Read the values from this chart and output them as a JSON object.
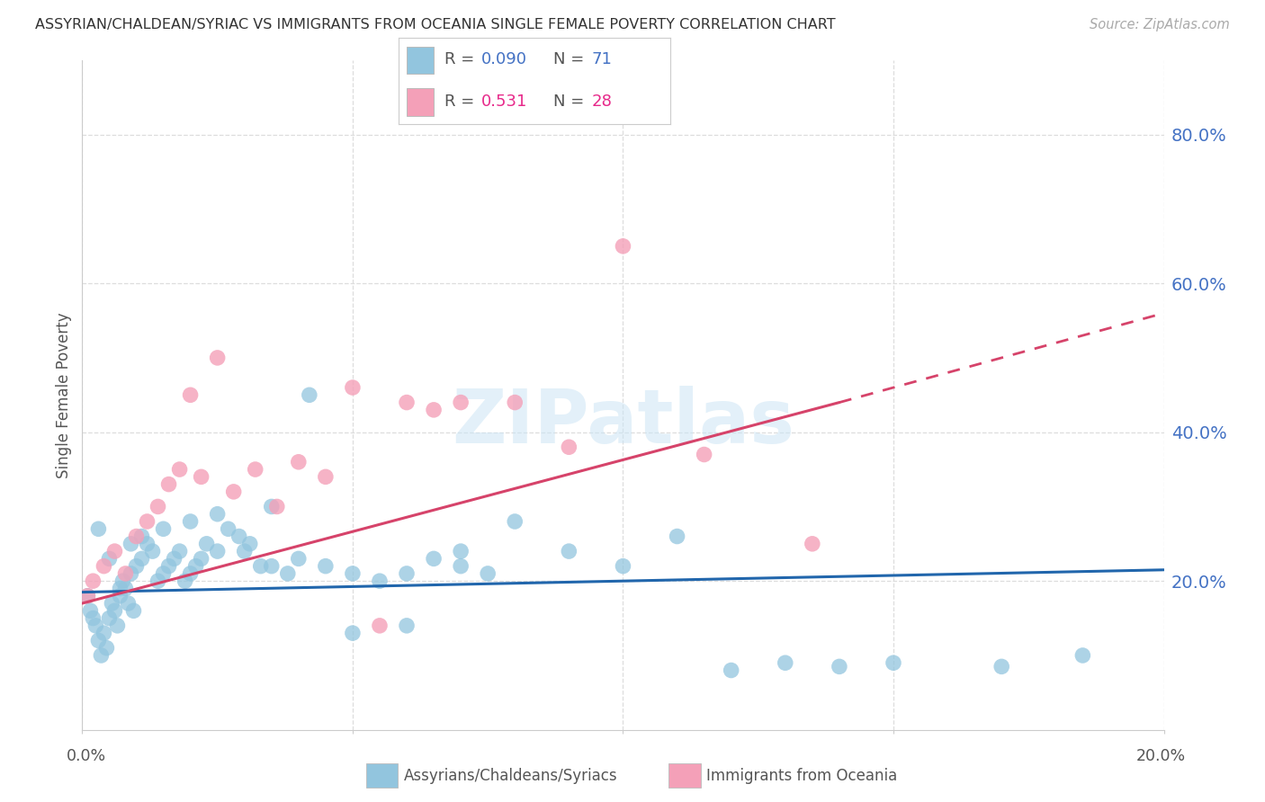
{
  "title": "ASSYRIAN/CHALDEAN/SYRIAC VS IMMIGRANTS FROM OCEANIA SINGLE FEMALE POVERTY CORRELATION CHART",
  "source": "Source: ZipAtlas.com",
  "ylabel": "Single Female Poverty",
  "blue_R": 0.09,
  "blue_N": 71,
  "pink_R": 0.531,
  "pink_N": 28,
  "blue_color": "#92c5de",
  "pink_color": "#f4a0b8",
  "blue_line_color": "#2166ac",
  "pink_line_color": "#d6436a",
  "blue_R_color": "#4472c4",
  "pink_R_color": "#e7298a",
  "axis_tick_color": "#4472c4",
  "legend_label_blue": "Assyrians/Chaldeans/Syriacs",
  "legend_label_pink": "Immigrants from Oceania",
  "watermark_color": "#cce5f5",
  "xlim": [
    0,
    20
  ],
  "ylim": [
    0,
    90
  ],
  "blue_x": [
    0.1,
    0.15,
    0.2,
    0.25,
    0.3,
    0.35,
    0.4,
    0.45,
    0.5,
    0.55,
    0.6,
    0.65,
    0.7,
    0.75,
    0.8,
    0.85,
    0.9,
    0.95,
    1.0,
    1.1,
    1.2,
    1.3,
    1.4,
    1.5,
    1.6,
    1.7,
    1.8,
    1.9,
    2.0,
    2.1,
    2.2,
    2.3,
    2.5,
    2.7,
    2.9,
    3.1,
    3.3,
    3.5,
    3.8,
    4.2,
    4.5,
    5.0,
    5.5,
    6.0,
    6.5,
    7.0,
    7.5,
    8.0,
    9.0,
    10.0,
    11.0,
    12.0,
    13.0,
    14.0,
    15.0,
    17.0,
    18.5,
    0.3,
    0.5,
    0.7,
    0.9,
    1.1,
    1.5,
    2.0,
    2.5,
    3.0,
    3.5,
    4.0,
    5.0,
    6.0,
    7.0
  ],
  "blue_y": [
    18.0,
    16.0,
    15.0,
    14.0,
    12.0,
    10.0,
    13.0,
    11.0,
    15.0,
    17.0,
    16.0,
    14.0,
    18.0,
    20.0,
    19.0,
    17.0,
    21.0,
    16.0,
    22.0,
    23.0,
    25.0,
    24.0,
    20.0,
    21.0,
    22.0,
    23.0,
    24.0,
    20.0,
    21.0,
    22.0,
    23.0,
    25.0,
    24.0,
    27.0,
    26.0,
    25.0,
    22.0,
    30.0,
    21.0,
    45.0,
    22.0,
    21.0,
    20.0,
    21.0,
    23.0,
    22.0,
    21.0,
    28.0,
    24.0,
    22.0,
    26.0,
    8.0,
    9.0,
    8.5,
    9.0,
    8.5,
    10.0,
    27.0,
    23.0,
    19.0,
    25.0,
    26.0,
    27.0,
    28.0,
    29.0,
    24.0,
    22.0,
    23.0,
    13.0,
    14.0,
    24.0
  ],
  "pink_x": [
    0.1,
    0.2,
    0.4,
    0.6,
    0.8,
    1.0,
    1.2,
    1.4,
    1.6,
    1.8,
    2.0,
    2.2,
    2.5,
    2.8,
    3.2,
    3.6,
    4.0,
    4.5,
    5.0,
    5.5,
    6.0,
    6.5,
    7.0,
    8.0,
    9.0,
    10.0,
    11.5,
    13.5
  ],
  "pink_y": [
    18.0,
    20.0,
    22.0,
    24.0,
    21.0,
    26.0,
    28.0,
    30.0,
    33.0,
    35.0,
    45.0,
    34.0,
    50.0,
    32.0,
    35.0,
    30.0,
    36.0,
    34.0,
    46.0,
    14.0,
    44.0,
    43.0,
    44.0,
    44.0,
    38.0,
    65.0,
    37.0,
    25.0
  ],
  "blue_trend_x0": 0,
  "blue_trend_y0": 18.5,
  "blue_trend_x1": 20,
  "blue_trend_y1": 21.5,
  "pink_trend_x0": 0,
  "pink_trend_y0": 17.0,
  "pink_trend_x1": 14.0,
  "pink_trend_y1": 44.0,
  "pink_dash_x0": 14.0,
  "pink_dash_y0": 44.0,
  "pink_dash_x1": 20,
  "pink_dash_y1": 56.0
}
